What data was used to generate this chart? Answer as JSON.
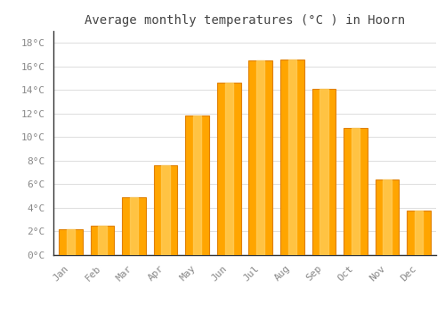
{
  "months": [
    "Jan",
    "Feb",
    "Mar",
    "Apr",
    "May",
    "Jun",
    "Jul",
    "Aug",
    "Sep",
    "Oct",
    "Nov",
    "Dec"
  ],
  "temperatures": [
    2.2,
    2.5,
    4.9,
    7.6,
    11.8,
    14.6,
    16.5,
    16.6,
    14.1,
    10.8,
    6.4,
    3.8
  ],
  "bar_color": "#FFA500",
  "bar_edge_color": "#E08000",
  "bar_highlight": "#FFD060",
  "title": "Average monthly temperatures (°C ) in Hoorn",
  "ylabel_ticks": [
    "0°C",
    "2°C",
    "4°C",
    "6°C",
    "8°C",
    "10°C",
    "12°C",
    "14°C",
    "16°C",
    "18°C"
  ],
  "ytick_values": [
    0,
    2,
    4,
    6,
    8,
    10,
    12,
    14,
    16,
    18
  ],
  "ylim": [
    0,
    19
  ],
  "background_color": "#ffffff",
  "grid_color": "#e0e0e0",
  "title_fontsize": 10,
  "tick_fontsize": 8,
  "tick_color": "#888888",
  "font_family": "monospace"
}
